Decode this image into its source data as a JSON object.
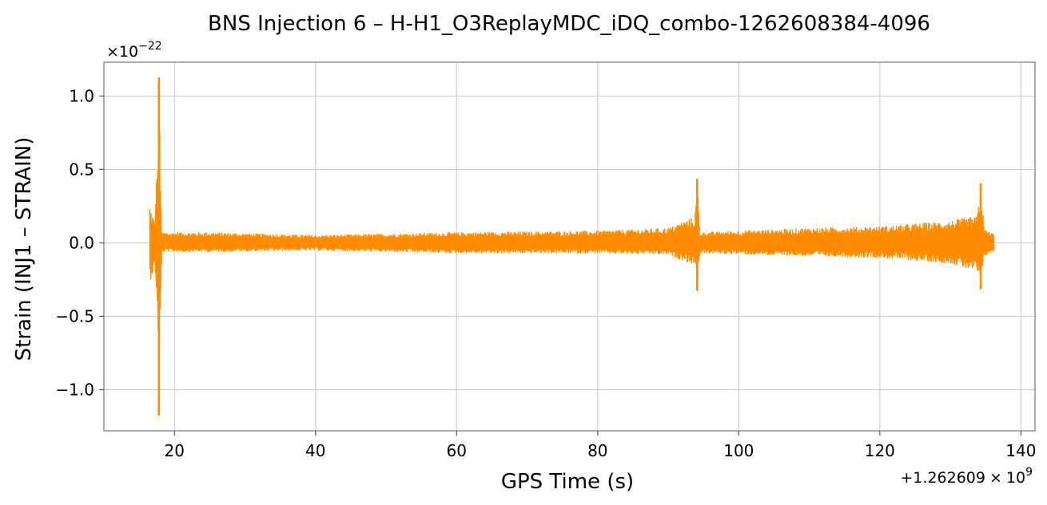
{
  "chart_data": {
    "type": "line",
    "title": "BNS Injection 6 – H-H1_O3ReplayMDC_iDQ_combo-1262608384-4096",
    "xlabel": "GPS Time (s)",
    "ylabel": "Strain (INJ1 – STRAIN)",
    "x_offset_label": "+1.262609",
    "x_offset_times": "×",
    "x_offset_base": "10",
    "x_offset_exp": "9",
    "y_scale_label": "×10",
    "y_scale_exp": "−22",
    "xlim": [
      10,
      142
    ],
    "ylim": [
      -1.28,
      1.23
    ],
    "xticks": [
      20,
      40,
      60,
      80,
      100,
      120,
      140
    ],
    "xtick_labels": [
      "20",
      "40",
      "60",
      "80",
      "100",
      "120",
      "140"
    ],
    "yticks": [
      -1.0,
      -0.5,
      0.0,
      0.5,
      1.0
    ],
    "ytick_labels": [
      "−1.0",
      "−0.5",
      "0.0",
      "0.5",
      "1.0"
    ],
    "grid": true,
    "series": [
      {
        "color": "#ff8c00",
        "signal_range": [
          16.5,
          136.2
        ],
        "envelope": [
          {
            "x": 16.5,
            "lo": -0.27,
            "hi": 0.27
          },
          {
            "x": 16.8,
            "lo": -0.22,
            "hi": 0.2
          },
          {
            "x": 17.2,
            "lo": -0.18,
            "hi": 0.15
          },
          {
            "x": 17.5,
            "lo": -0.3,
            "hi": 0.4
          },
          {
            "x": 17.8,
            "lo": -1.17,
            "hi": 1.12
          },
          {
            "x": 18.2,
            "lo": -0.06,
            "hi": 0.07
          },
          {
            "x": 25,
            "lo": -0.06,
            "hi": 0.07
          },
          {
            "x": 40,
            "lo": -0.05,
            "hi": 0.05
          },
          {
            "x": 60,
            "lo": -0.07,
            "hi": 0.07
          },
          {
            "x": 80,
            "lo": -0.07,
            "hi": 0.08
          },
          {
            "x": 90,
            "lo": -0.08,
            "hi": 0.1
          },
          {
            "x": 93.8,
            "lo": -0.15,
            "hi": 0.18
          },
          {
            "x": 94.1,
            "lo": -0.32,
            "hi": 0.43
          },
          {
            "x": 94.5,
            "lo": -0.07,
            "hi": 0.07
          },
          {
            "x": 110,
            "lo": -0.09,
            "hi": 0.1
          },
          {
            "x": 120,
            "lo": -0.1,
            "hi": 0.11
          },
          {
            "x": 130,
            "lo": -0.14,
            "hi": 0.15
          },
          {
            "x": 133.8,
            "lo": -0.2,
            "hi": 0.18
          },
          {
            "x": 134.3,
            "lo": -0.31,
            "hi": 0.4
          },
          {
            "x": 134.8,
            "lo": -0.09,
            "hi": 0.09
          },
          {
            "x": 136.2,
            "lo": -0.06,
            "hi": 0.06
          }
        ]
      }
    ]
  }
}
